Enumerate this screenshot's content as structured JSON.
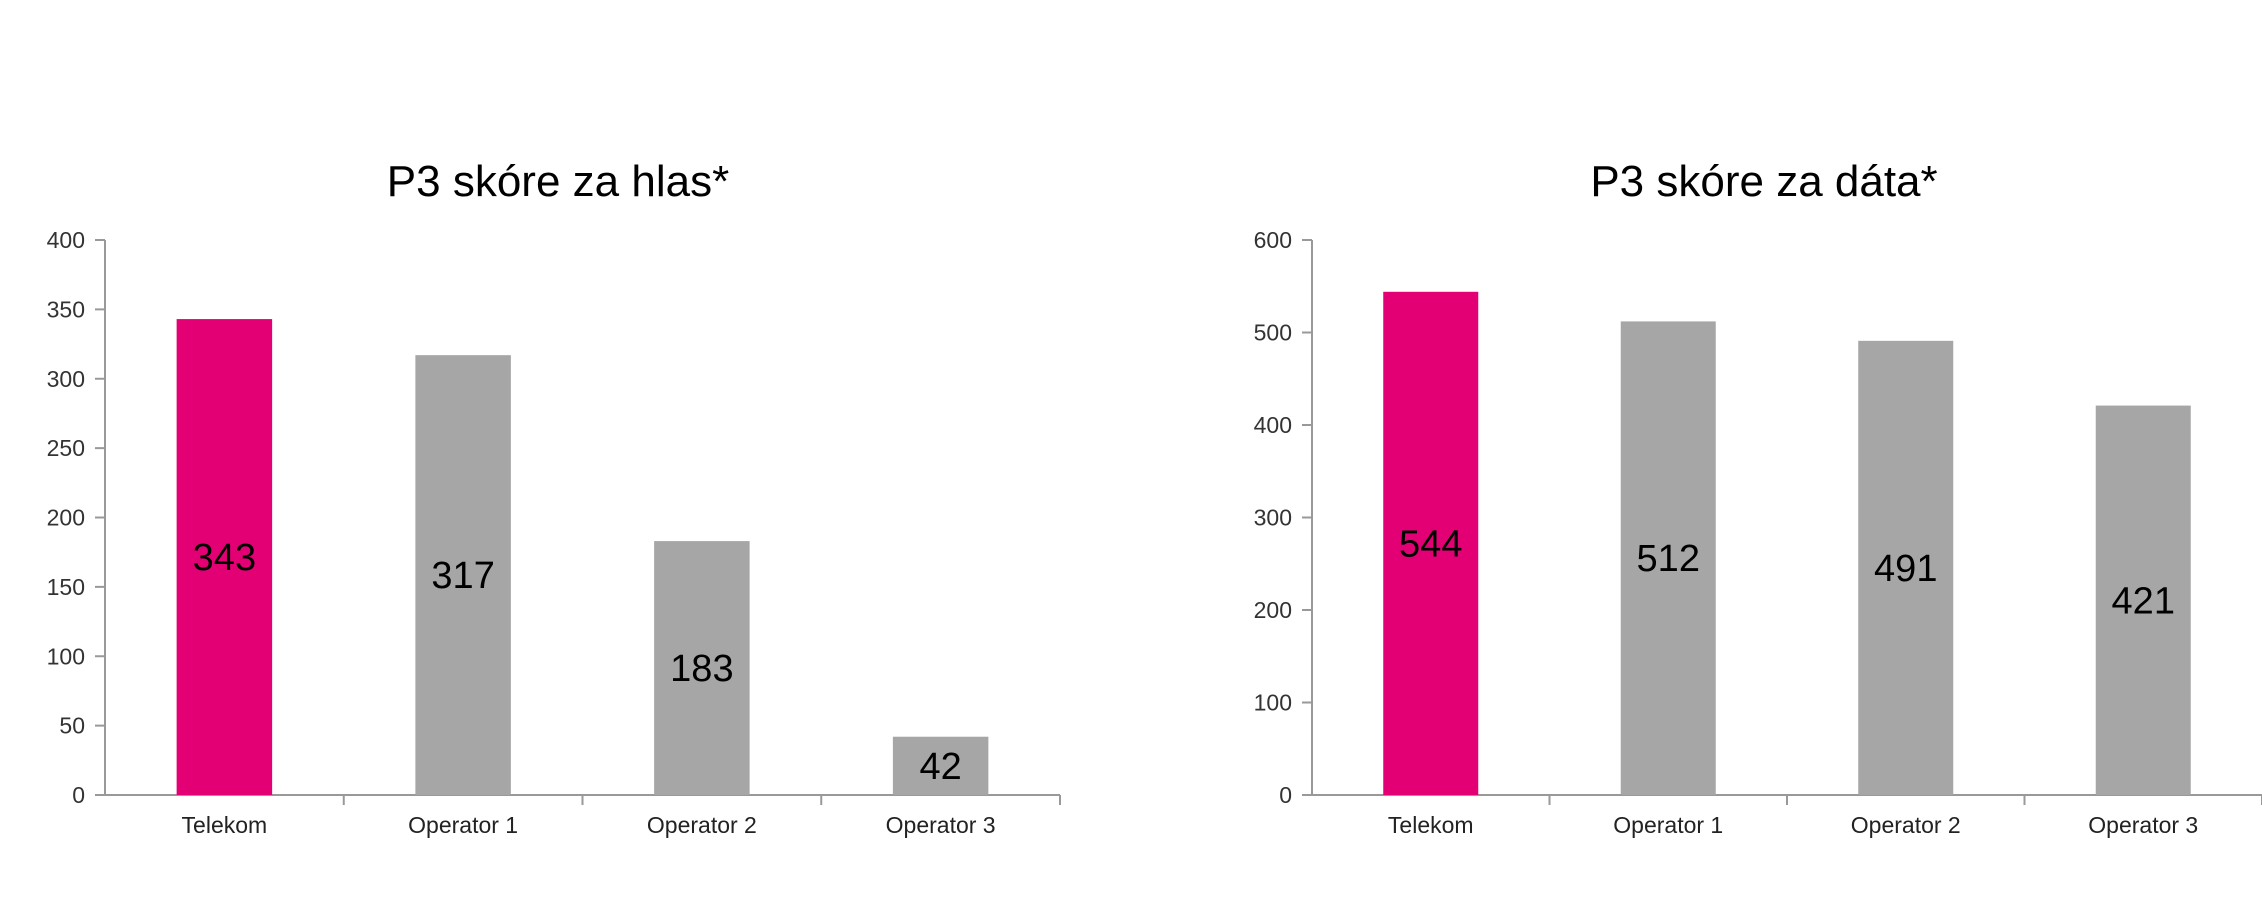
{
  "colors": {
    "highlight": "#e20074",
    "other": "#a6a6a6",
    "axis": "#999999"
  },
  "chart_data": [
    {
      "type": "bar",
      "title": "P3 skóre za hlas*",
      "categories": [
        "Telekom",
        "Operator 1",
        "Operator 2",
        "Operator 3"
      ],
      "values": [
        343,
        317,
        183,
        42
      ],
      "data_labels": [
        "343",
        "317",
        "183",
        "42"
      ],
      "ylim": [
        0,
        400
      ],
      "yticks": [
        "0",
        "50",
        "100",
        "150",
        "200",
        "250",
        "300",
        "350",
        "400"
      ],
      "bar_colors": [
        "#e20074",
        "#a6a6a6",
        "#a6a6a6",
        "#a6a6a6"
      ],
      "grid": false,
      "xlabel": "",
      "ylabel": ""
    },
    {
      "type": "bar",
      "title": "P3 skóre za dáta*",
      "categories": [
        "Telekom",
        "Operator 1",
        "Operator 2",
        "Operator 3"
      ],
      "values": [
        544,
        512,
        491,
        421
      ],
      "data_labels": [
        "544",
        "512",
        "491",
        "421"
      ],
      "ylim": [
        0,
        600
      ],
      "yticks": [
        "0",
        "100",
        "200",
        "300",
        "400",
        "500",
        "600"
      ],
      "bar_colors": [
        "#e20074",
        "#a6a6a6",
        "#a6a6a6",
        "#a6a6a6"
      ],
      "grid": false,
      "xlabel": "",
      "ylabel": ""
    }
  ]
}
